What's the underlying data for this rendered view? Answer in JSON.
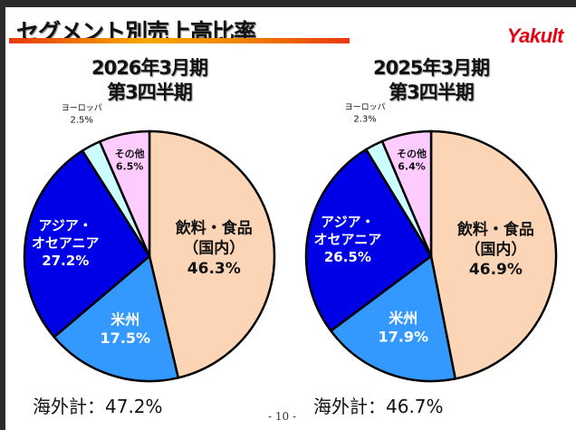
{
  "title": "セグメント別売上高比率",
  "logo": "Yakult",
  "page_number": "- 10 -",
  "chart_data": [
    {
      "type": "pie",
      "title_line1": "2026年3月期",
      "title_line2": "第3四半期",
      "slices": [
        {
          "label": "飲料・食品（国内）",
          "label_lines": [
            "飲料・食品",
            "（国内）"
          ],
          "value": 46.3,
          "value_label": "46.3%",
          "color": "#fbd5b5"
        },
        {
          "label": "米州",
          "label_lines": [
            "米州"
          ],
          "value": 17.5,
          "value_label": "17.5%",
          "color": "#3399ff"
        },
        {
          "label": "アジア・オセアニア",
          "label_lines": [
            "アジア・",
            "オセアニア"
          ],
          "value": 27.2,
          "value_label": "27.2%",
          "color": "#0000e6"
        },
        {
          "label": "ヨーロッパ",
          "label_lines": [
            "ヨーロッパ"
          ],
          "value": 2.5,
          "value_label": "2.5%",
          "color": "#ccffff"
        },
        {
          "label": "その他",
          "label_lines": [
            "その他"
          ],
          "value": 6.5,
          "value_label": "6.5%",
          "color": "#ffccff"
        }
      ],
      "overseas_total": "海外計：47.2%"
    },
    {
      "type": "pie",
      "title_line1": "2025年3月期",
      "title_line2": "第3四半期",
      "slices": [
        {
          "label": "飲料・食品（国内）",
          "label_lines": [
            "飲料・食品",
            "（国内）"
          ],
          "value": 46.9,
          "value_label": "46.9%",
          "color": "#fbd5b5"
        },
        {
          "label": "米州",
          "label_lines": [
            "米州"
          ],
          "value": 17.9,
          "value_label": "17.9%",
          "color": "#3399ff"
        },
        {
          "label": "アジア・オセアニア",
          "label_lines": [
            "アジア・",
            "オセアニア"
          ],
          "value": 26.5,
          "value_label": "26.5%",
          "color": "#0000e6"
        },
        {
          "label": "ヨーロッパ",
          "label_lines": [
            "ヨーロッパ"
          ],
          "value": 2.3,
          "value_label": "2.3%",
          "color": "#ccffff"
        },
        {
          "label": "その他",
          "label_lines": [
            "その他"
          ],
          "value": 6.4,
          "value_label": "6.4%",
          "color": "#ffccff"
        }
      ],
      "overseas_total": "海外計：46.7%"
    }
  ]
}
